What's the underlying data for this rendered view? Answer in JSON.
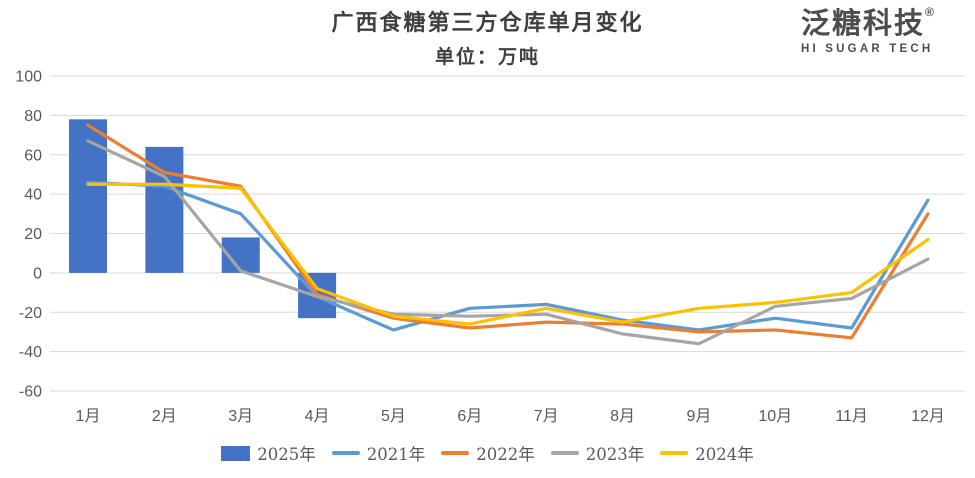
{
  "header": {
    "title": "广西食糖第三方仓库单月变化",
    "subtitle": "单位：万吨"
  },
  "logo": {
    "name_cn": "泛糖科技",
    "registered_mark": "®",
    "name_en": "HI SUGAR TECH"
  },
  "chart_data": {
    "type": "bar",
    "subtype": "bar+line combo",
    "title": "广西食糖第三方仓库单月变化",
    "unit_label": "单位：万吨",
    "categories": [
      "1月",
      "2月",
      "3月",
      "4月",
      "5月",
      "6月",
      "7月",
      "8月",
      "9月",
      "10月",
      "11月",
      "12月"
    ],
    "xlabel": "",
    "ylabel": "万吨",
    "ylim": [
      -60,
      100
    ],
    "y_ticks": [
      100,
      80,
      60,
      40,
      20,
      0,
      -20,
      -40,
      -60
    ],
    "grid": "horizontal",
    "legend_position": "bottom",
    "bar_series": {
      "name": "2025年",
      "color": "#4472C4",
      "values": [
        78,
        64,
        18,
        -23,
        null,
        null,
        null,
        null,
        null,
        null,
        null,
        null
      ]
    },
    "line_series": [
      {
        "name": "2021年",
        "color": "#5B9BD5",
        "values": [
          46,
          44,
          30,
          -12,
          -29,
          -18,
          -16,
          -24,
          -29,
          -23,
          -28,
          37
        ]
      },
      {
        "name": "2022年",
        "color": "#ED7D31",
        "values": [
          75,
          51,
          44,
          -11,
          -23,
          -28,
          -25,
          -26,
          -30,
          -29,
          -33,
          30
        ]
      },
      {
        "name": "2023年",
        "color": "#A5A5A5",
        "values": [
          67,
          49,
          1,
          -12,
          -21,
          -22,
          -21,
          -31,
          -36,
          -17,
          -13,
          7
        ]
      },
      {
        "name": "2024年",
        "color": "#FFC000",
        "values": [
          45,
          45,
          43,
          -8,
          -22,
          -26,
          -18,
          -25,
          -18,
          -15,
          -10,
          17
        ]
      }
    ],
    "colors": {
      "grid": "#D9D9D9",
      "axis_text": "#595959"
    }
  }
}
